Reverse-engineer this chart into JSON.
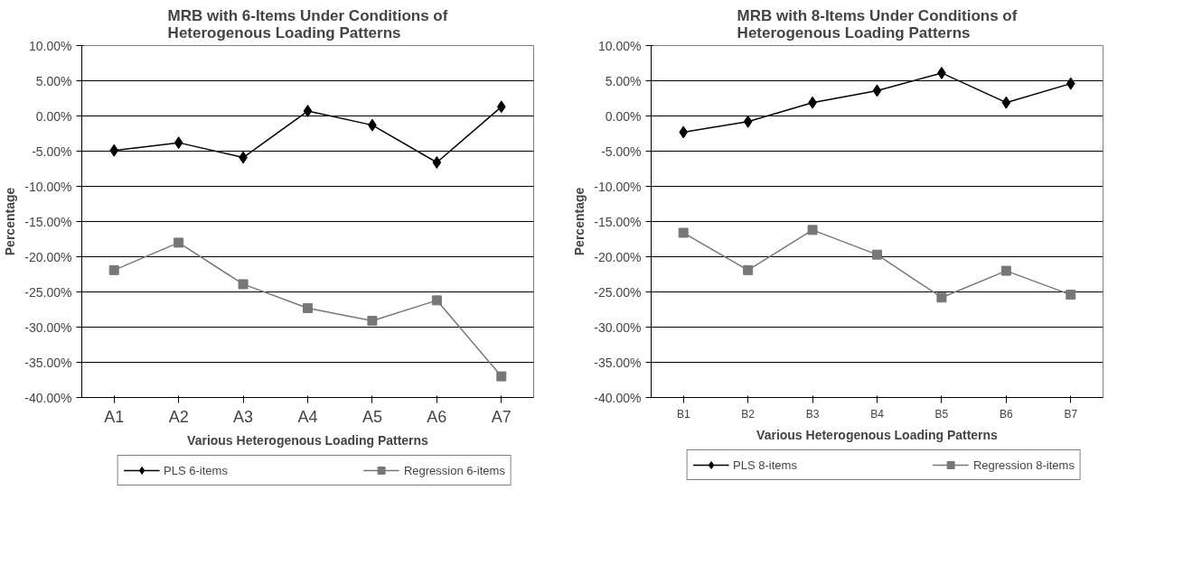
{
  "chart_data": [
    {
      "type": "line",
      "title": "MRB with 6-Items Under Conditions of Heterogenous Loading Patterns",
      "xlabel": "Various Heterogenous Loading Patterns",
      "ylabel": "Percentage",
      "categories": [
        "A1",
        "A2",
        "A3",
        "A4",
        "A5",
        "A6",
        "A7"
      ],
      "ylim": [
        -40,
        10
      ],
      "yticks": [
        {
          "value": -40,
          "label": "-40.00%"
        },
        {
          "value": -35,
          "label": "-35.00%"
        },
        {
          "value": -30,
          "label": "-30.00%"
        },
        {
          "value": -25,
          "label": "-25.00%"
        },
        {
          "value": -20,
          "label": "-20.00%"
        },
        {
          "value": -15,
          "label": "-15.00%"
        },
        {
          "value": -10,
          "label": "-10.00%"
        },
        {
          "value": -5,
          "label": "-5.00%"
        },
        {
          "value": 0,
          "label": "0.00%"
        },
        {
          "value": 5,
          "label": "5.00%"
        },
        {
          "value": 10,
          "label": "10.00%"
        }
      ],
      "grid": "y",
      "legend": "bottom",
      "line_style": "solid",
      "series": [
        {
          "name": "PLS 6-items",
          "color": "#000000",
          "marker": "diamond",
          "values": [
            -4.9,
            -3.8,
            -5.9,
            0.7,
            -1.3,
            -6.6,
            1.3
          ]
        },
        {
          "name": "Regression 6-items",
          "color": "#777777",
          "marker": "square",
          "values": [
            -21.9,
            -18.0,
            -23.9,
            -27.3,
            -29.1,
            -26.2,
            -37.0
          ]
        }
      ]
    },
    {
      "type": "line",
      "title": "MRB with 8-Items Under Conditions of Heterogenous Loading Patterns",
      "xlabel": "Various Heterogenous Loading Patterns",
      "ylabel": "Percentage",
      "categories": [
        "B1",
        "B2",
        "B3",
        "B4",
        "B5",
        "B6",
        "B7"
      ],
      "ylim": [
        -40,
        10
      ],
      "yticks": [
        {
          "value": -40,
          "label": "-40.00%"
        },
        {
          "value": -35,
          "label": "-35.00%"
        },
        {
          "value": -30,
          "label": "-30.00%"
        },
        {
          "value": -25,
          "label": "-25.00%"
        },
        {
          "value": -20,
          "label": "-20.00%"
        },
        {
          "value": -15,
          "label": "-15.00%"
        },
        {
          "value": -10,
          "label": "-10.00%"
        },
        {
          "value": -5,
          "label": "-5.00%"
        },
        {
          "value": 0,
          "label": "0.00%"
        },
        {
          "value": 5,
          "label": "5.00%"
        },
        {
          "value": 10,
          "label": "10.00%"
        }
      ],
      "grid": "y",
      "legend": "bottom",
      "line_style": "solid",
      "series": [
        {
          "name": "PLS 8-items",
          "color": "#000000",
          "marker": "diamond",
          "values": [
            -2.3,
            -0.8,
            1.9,
            3.6,
            6.1,
            1.9,
            4.6
          ]
        },
        {
          "name": "Regression 8-items",
          "color": "#777777",
          "marker": "square",
          "values": [
            -16.6,
            -21.9,
            -16.2,
            -19.7,
            -25.8,
            -22.0,
            -25.4
          ]
        }
      ]
    }
  ]
}
